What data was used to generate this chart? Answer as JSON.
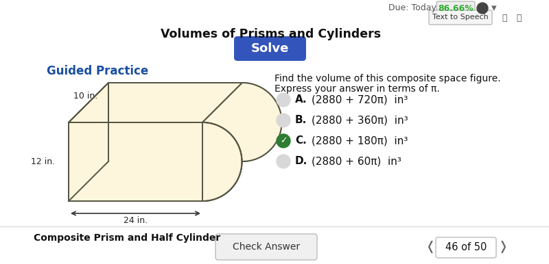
{
  "title": "Volumes of Prisms and Cylinders",
  "question_text_1": "Find the volume of this composite space figure.",
  "question_text_2": "Express your answer in terms of π.",
  "guided_practice_label": "Guided Practice",
  "figure_label": "Composite Prism and Half Cylinder",
  "dim_width": "10 in.",
  "dim_height": "12 in.",
  "dim_depth": "24 in.",
  "choices": [
    {
      "letter": "A.",
      "text": "(2880 + 720π)  in³",
      "correct": false
    },
    {
      "letter": "B.",
      "text": "(2880 + 360π)  in³",
      "correct": false
    },
    {
      "letter": "C.",
      "text": "(2880 + 180π)  in³",
      "correct": true
    },
    {
      "letter": "D.",
      "text": "(2880 + 60π)  in³",
      "correct": false
    }
  ],
  "solve_btn_color": "#3355bb",
  "solve_btn_text": "Solve",
  "check_btn_text": "Check Answer",
  "due_text": "Due: Today",
  "due_pct": "86.66%",
  "nav_text": "46 of 50",
  "bg_color": "#ffffff",
  "figure_fill": "#fdf5dc",
  "figure_stroke": "#555544",
  "choice_circle_color": "#cccccc",
  "correct_circle_color": "#2e7d32",
  "text_color": "#111111",
  "blue_text": "#1a4fa0",
  "gray_text": "#555555"
}
